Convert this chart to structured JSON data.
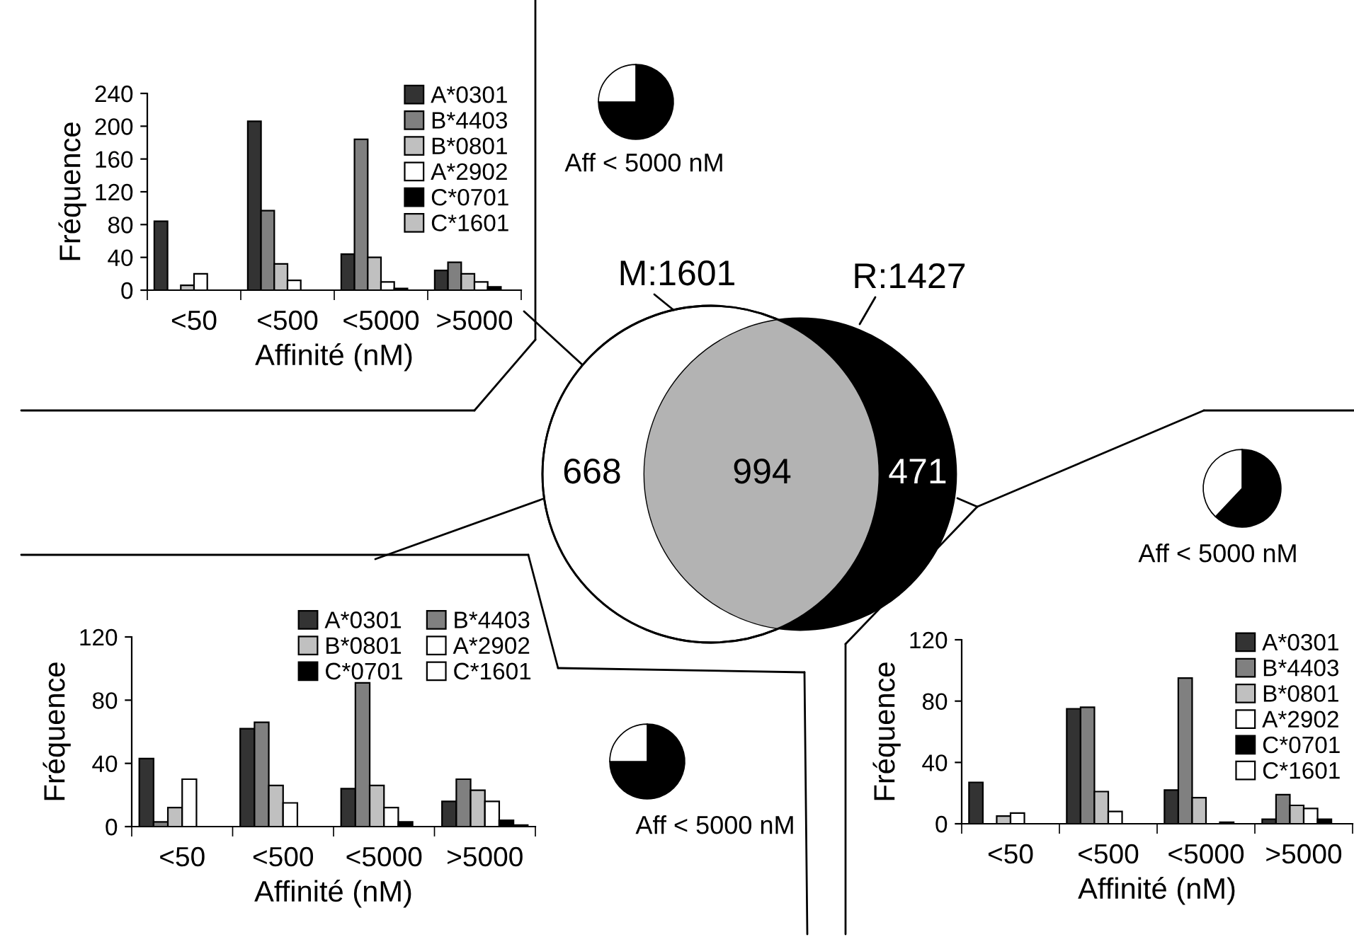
{
  "chart_data": [
    {
      "type": "bar",
      "categories": [
        "<50",
        "<500",
        "<5000",
        ">5000"
      ],
      "xlabel": "Affinité (nM)",
      "ylabel": "Fréquence",
      "ylim": [
        0,
        240
      ],
      "yticks": [
        0,
        40,
        80,
        120,
        160,
        200,
        240
      ],
      "legend": "right",
      "grid": false,
      "series": [
        {
          "name": "A*0301",
          "color": "#333333",
          "values": [
            84,
            206,
            44,
            24
          ]
        },
        {
          "name": "B*4403",
          "color": "#808080",
          "values": [
            0,
            97,
            184,
            34
          ]
        },
        {
          "name": "B*0801",
          "color": "#c0c0c0",
          "values": [
            6,
            32,
            40,
            20
          ]
        },
        {
          "name": "A*2902",
          "color": "#ffffff",
          "values": [
            20,
            12,
            10,
            10
          ]
        },
        {
          "name": "C*0701",
          "color": "#000000",
          "values": [
            0,
            0,
            2,
            4
          ]
        },
        {
          "name": "C*1601",
          "color": "#c0c0c0",
          "values": [
            0,
            0,
            0,
            0
          ]
        }
      ]
    },
    {
      "type": "pie",
      "categories": [
        null,
        null
      ],
      "values": [
        75,
        25
      ],
      "colors": [
        "#000000",
        "#ffffff"
      ],
      "annotations": [
        "Aff < 5000 nM"
      ]
    },
    {
      "type": "other",
      "annotations": [
        "M:1601",
        "R:1427",
        "668",
        "994",
        "471"
      ]
    },
    {
      "type": "pie",
      "categories": [
        null,
        null
      ],
      "values": [
        62,
        38
      ],
      "colors": [
        "#000000",
        "#ffffff"
      ],
      "annotations": [
        "Aff < 5000 nM"
      ]
    },
    {
      "type": "bar",
      "categories": [
        "<50",
        "<500",
        "<5000",
        ">5000"
      ],
      "xlabel": "Affinité (nM)",
      "ylabel": "Fréquence",
      "ylim": [
        0,
        120
      ],
      "yticks": [
        0,
        40,
        80,
        120
      ],
      "legend": "top",
      "grid": false,
      "series": [
        {
          "name": "A*0301",
          "color": "#333333",
          "values": [
            43,
            62,
            24,
            16
          ]
        },
        {
          "name": "B*4403",
          "color": "#808080",
          "values": [
            3,
            66,
            91,
            30
          ]
        },
        {
          "name": "B*0801",
          "color": "#c0c0c0",
          "values": [
            12,
            26,
            26,
            23
          ]
        },
        {
          "name": "A*2902",
          "color": "#ffffff",
          "values": [
            30,
            15,
            12,
            16
          ]
        },
        {
          "name": "C*0701",
          "color": "#000000",
          "values": [
            0,
            0,
            3,
            4
          ]
        },
        {
          "name": "C*1601",
          "color": "#ffffff",
          "values": [
            0,
            0,
            0,
            1
          ]
        }
      ]
    },
    {
      "type": "pie",
      "categories": [
        null,
        null
      ],
      "values": [
        75,
        25
      ],
      "colors": [
        "#000000",
        "#ffffff"
      ],
      "annotations": [
        "Aff < 5000 nM"
      ]
    },
    {
      "type": "bar",
      "categories": [
        "<50",
        "<500",
        "<5000",
        ">5000"
      ],
      "xlabel": "Affinité (nM)",
      "ylabel": "Fréquence",
      "ylim": [
        0,
        120
      ],
      "yticks": [
        0,
        40,
        80,
        120
      ],
      "legend": "right",
      "grid": false,
      "series": [
        {
          "name": "A*0301",
          "color": "#333333",
          "values": [
            27,
            75,
            22,
            3
          ]
        },
        {
          "name": "B*4403",
          "color": "#808080",
          "values": [
            0,
            76,
            95,
            19
          ]
        },
        {
          "name": "B*0801",
          "color": "#c0c0c0",
          "values": [
            5,
            21,
            17,
            12
          ]
        },
        {
          "name": "A*2902",
          "color": "#ffffff",
          "values": [
            7,
            8,
            0,
            10
          ]
        },
        {
          "name": "C*0701",
          "color": "#000000",
          "values": [
            0,
            0,
            1,
            3
          ]
        },
        {
          "name": "C*1601",
          "color": "#ffffff",
          "values": [
            0,
            0,
            0,
            0
          ]
        }
      ]
    }
  ]
}
